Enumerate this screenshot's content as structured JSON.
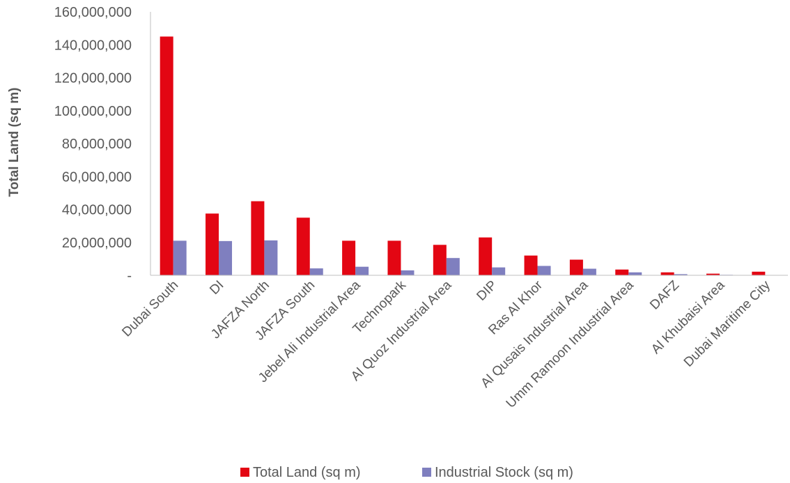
{
  "chart_data": {
    "type": "bar",
    "title": "",
    "xlabel": "",
    "ylabel": "Total Land (sq m)",
    "ylim": [
      0,
      160000000
    ],
    "yticks": [
      0,
      20000000,
      40000000,
      60000000,
      80000000,
      100000000,
      120000000,
      140000000,
      160000000
    ],
    "ytick_labels": [
      "-",
      "20,000,000",
      "40,000,000",
      "60,000,000",
      "80,000,000",
      "100,000,000",
      "120,000,000",
      "140,000,000",
      "160,000,000"
    ],
    "grid": false,
    "legend_position": "bottom",
    "categories": [
      "Dubai South",
      "DI",
      "JAFZA North",
      "JAFZA South",
      "Jebel Ali Industrial Area",
      "Technopark",
      "Al Quoz Industrial Area",
      "DIP",
      "Ras Al Khor",
      "Al Qusais Industrial Area",
      "Umm Ramoon Industrial Area",
      "DAFZ",
      "Al Khubaisi Area",
      "Dubai Maritime City"
    ],
    "series": [
      {
        "name": "Total Land (sq m)",
        "color": "#e30613",
        "values": [
          145000000,
          37500000,
          45000000,
          35000000,
          21000000,
          21000000,
          18500000,
          23000000,
          12000000,
          9500000,
          3500000,
          1800000,
          1000000,
          2200000
        ]
      },
      {
        "name": "Industrial Stock (sq m)",
        "color": "#7f7fbf",
        "values": [
          21000000,
          20800000,
          21200000,
          4200000,
          5200000,
          3000000,
          10500000,
          4800000,
          5700000,
          4000000,
          1800000,
          700000,
          300000,
          0
        ]
      }
    ]
  }
}
